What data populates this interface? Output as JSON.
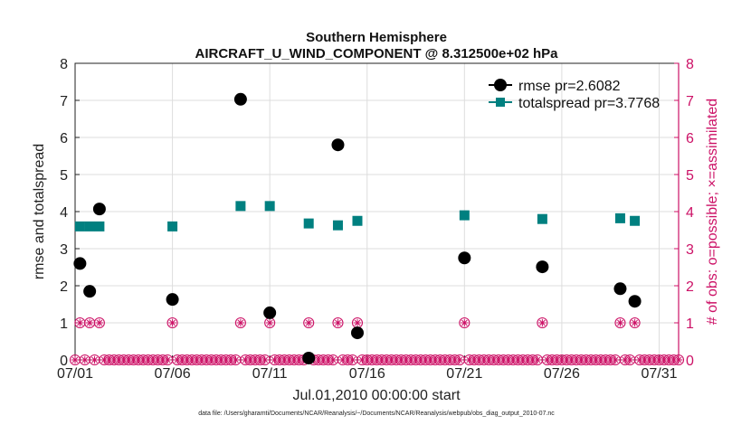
{
  "chart_data": {
    "type": "scatter",
    "title": "Southern Hemisphere",
    "subtitle": "AIRCRAFT_U_WIND_COMPONENT @ 8.312500e+02 hPa",
    "xlabel": "Jul.01,2010 00:00:00 start",
    "ylabel": "rmse and totalspread",
    "ylabel_right": "# of obs: o=possible; ×=assimilated",
    "x_tick_labels": [
      "07/01",
      "07/06",
      "07/11",
      "07/16",
      "07/21",
      "07/26",
      "07/31"
    ],
    "x_tick_values": [
      1,
      6,
      11,
      16,
      21,
      26,
      31
    ],
    "xlim": [
      1,
      32
    ],
    "ylim": [
      0,
      8
    ],
    "ylim_right": [
      0,
      8
    ],
    "y_ticks": [
      0,
      1,
      2,
      3,
      4,
      5,
      6,
      7,
      8
    ],
    "y_ticks_right": [
      0,
      1,
      2,
      3,
      4,
      5,
      6,
      7,
      8
    ],
    "grid": true,
    "legend_position": "top-right",
    "footnote": "data file: /Users/gharamti/Documents/NCAR/Reanalysis/~/Documents/NCAR/Reanalysis/webpub/obs_diag_output_2010-07.nc",
    "colors": {
      "rmse": "#000000",
      "totalspread": "#008080",
      "obs": "#cc1166",
      "grid": "#dddddd",
      "axis": "#222222"
    },
    "series": [
      {
        "name": "rmse pr=2.6082",
        "x": [
          1.25,
          1.75,
          2.25,
          6.0,
          9.5,
          11.0,
          13.0,
          14.5,
          15.5,
          21.0,
          25.0,
          29.0,
          29.75
        ],
        "values": [
          2.6,
          1.85,
          4.07,
          1.63,
          7.03,
          1.27,
          0.05,
          5.8,
          0.73,
          2.75,
          2.51,
          1.92,
          1.58
        ]
      },
      {
        "name": "totalspread pr=3.7768",
        "x": [
          1.25,
          1.75,
          2.25,
          6.0,
          9.5,
          11.0,
          13.0,
          14.5,
          15.5,
          21.0,
          25.0,
          29.0,
          29.75
        ],
        "values": [
          3.6,
          3.6,
          3.6,
          3.6,
          4.15,
          4.15,
          3.68,
          3.63,
          3.75,
          3.9,
          3.8,
          3.82,
          3.75
        ]
      },
      {
        "name": "obs possible / assimilated",
        "x_start": 1.0,
        "x_step": 0.25,
        "x_end": 32.0,
        "values_default": 0,
        "x_ones": [
          1.25,
          1.75,
          2.25,
          6.0,
          9.5,
          11.0,
          13.0,
          14.5,
          15.5,
          21.0,
          25.0,
          29.0,
          29.75
        ],
        "value_one": 1
      }
    ]
  }
}
